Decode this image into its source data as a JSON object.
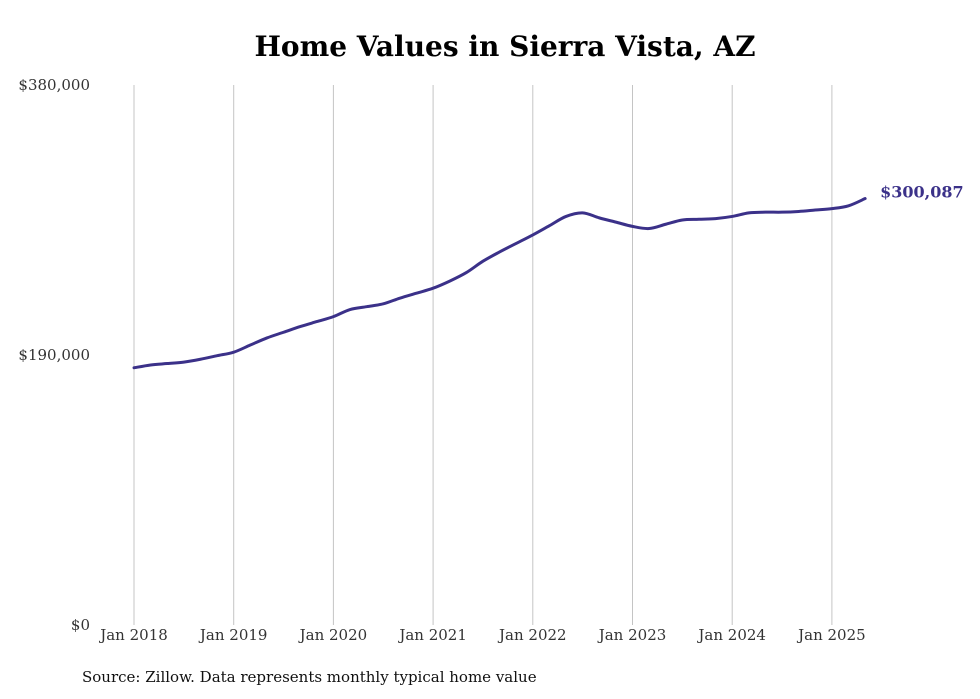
{
  "chart_data": {
    "type": "line",
    "title": "Home Values in Sierra Vista, AZ",
    "xlabel": "",
    "ylabel": "",
    "x_tick_labels": [
      "Jan 2018",
      "Jan 2019",
      "Jan 2020",
      "Jan 2021",
      "Jan 2022",
      "Jan 2023",
      "Jan 2024",
      "Jan 2025"
    ],
    "y_tick_labels": [
      "$0",
      "$190,000",
      "$380,000"
    ],
    "y_ticks": [
      0,
      190000,
      380000
    ],
    "ylim": [
      0,
      380000
    ],
    "xlim": [
      "2017-12",
      "2025-08"
    ],
    "grid": "vertical",
    "line_color": "#3b3189",
    "end_label": "$300,087",
    "series": [
      {
        "x": [
          "2018-01",
          "2018-03",
          "2018-05",
          "2018-07",
          "2018-09",
          "2018-11",
          "2019-01",
          "2019-03",
          "2019-05",
          "2019-07",
          "2019-09",
          "2019-11",
          "2020-01",
          "2020-03",
          "2020-05",
          "2020-07",
          "2020-09",
          "2020-11",
          "2021-01",
          "2021-03",
          "2021-05",
          "2021-07",
          "2021-09",
          "2021-11",
          "2022-01",
          "2022-03",
          "2022-05",
          "2022-07",
          "2022-09",
          "2022-11",
          "2023-01",
          "2023-03",
          "2023-05",
          "2023-07",
          "2023-09",
          "2023-11",
          "2024-01",
          "2024-03",
          "2024-05",
          "2024-07",
          "2024-09",
          "2024-11",
          "2025-01",
          "2025-03",
          "2025-05"
        ],
        "values": [
          181000,
          183000,
          184000,
          185000,
          187000,
          189500,
          192000,
          197000,
          202000,
          206000,
          210000,
          213500,
          217000,
          222000,
          224000,
          226000,
          230000,
          233500,
          237000,
          242000,
          248000,
          256000,
          262500,
          268500,
          274500,
          281000,
          287500,
          290000,
          286500,
          283500,
          280500,
          279000,
          282000,
          285000,
          285500,
          286000,
          287500,
          290000,
          290500,
          290500,
          291000,
          292000,
          293000,
          295000,
          300087
        ]
      }
    ],
    "source_note": "Source: Zillow. Data represents monthly typical home value"
  }
}
